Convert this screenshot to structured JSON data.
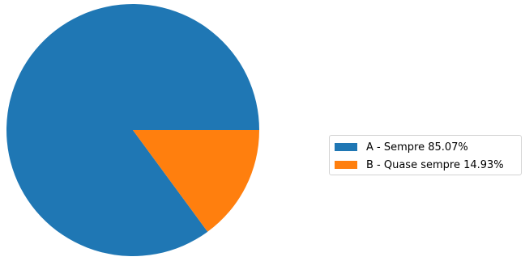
{
  "chart_data": {
    "type": "pie",
    "categories": [
      "A - Sempre 85.07%",
      "B - Quase sempre 14.93%"
    ],
    "values": [
      85.07,
      14.93
    ],
    "colors": [
      "#1f77b4",
      "#ff7f0e"
    ],
    "start_angle_deg": 0,
    "direction": "counterclockwise",
    "legend_position": "center-right"
  }
}
